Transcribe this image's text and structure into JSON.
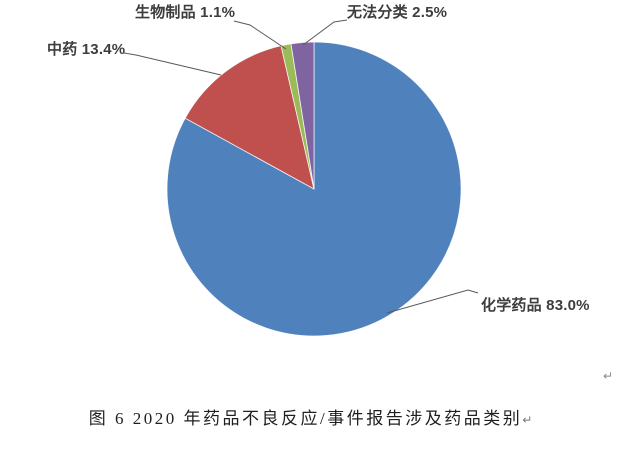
{
  "chart_data": {
    "type": "pie",
    "title": "图 6 2020 年药品不良反应/事件报告涉及药品类别",
    "start_angle_deg": 0,
    "direction": "clockwise",
    "legend": "none",
    "labels_style": "outside-with-leader-lines",
    "slices": [
      {
        "key": "chemical",
        "label": "化学药品",
        "value_pct": 83.0,
        "display": "化学药品 83.0%",
        "color": "#4f81bd"
      },
      {
        "key": "tcm",
        "label": "中药",
        "value_pct": 13.4,
        "display": "中药 13.4%",
        "color": "#c0504d"
      },
      {
        "key": "biologics",
        "label": "生物制品",
        "value_pct": 1.1,
        "display": "生物制品 1.1%",
        "color": "#9bbb59"
      },
      {
        "key": "unclassified",
        "label": "无法分类",
        "value_pct": 2.5,
        "display": "无法分类 2.5%",
        "color": "#8064a2"
      }
    ]
  },
  "caption": {
    "text": "图 6 2020 年药品不良反应/事件报告涉及药品类别",
    "return_mark": "↵"
  },
  "marks": {
    "page_return": "↵"
  },
  "style": {
    "label_color": "#3d3d3d",
    "leader_line_color": "#595959",
    "background": "#ffffff"
  }
}
